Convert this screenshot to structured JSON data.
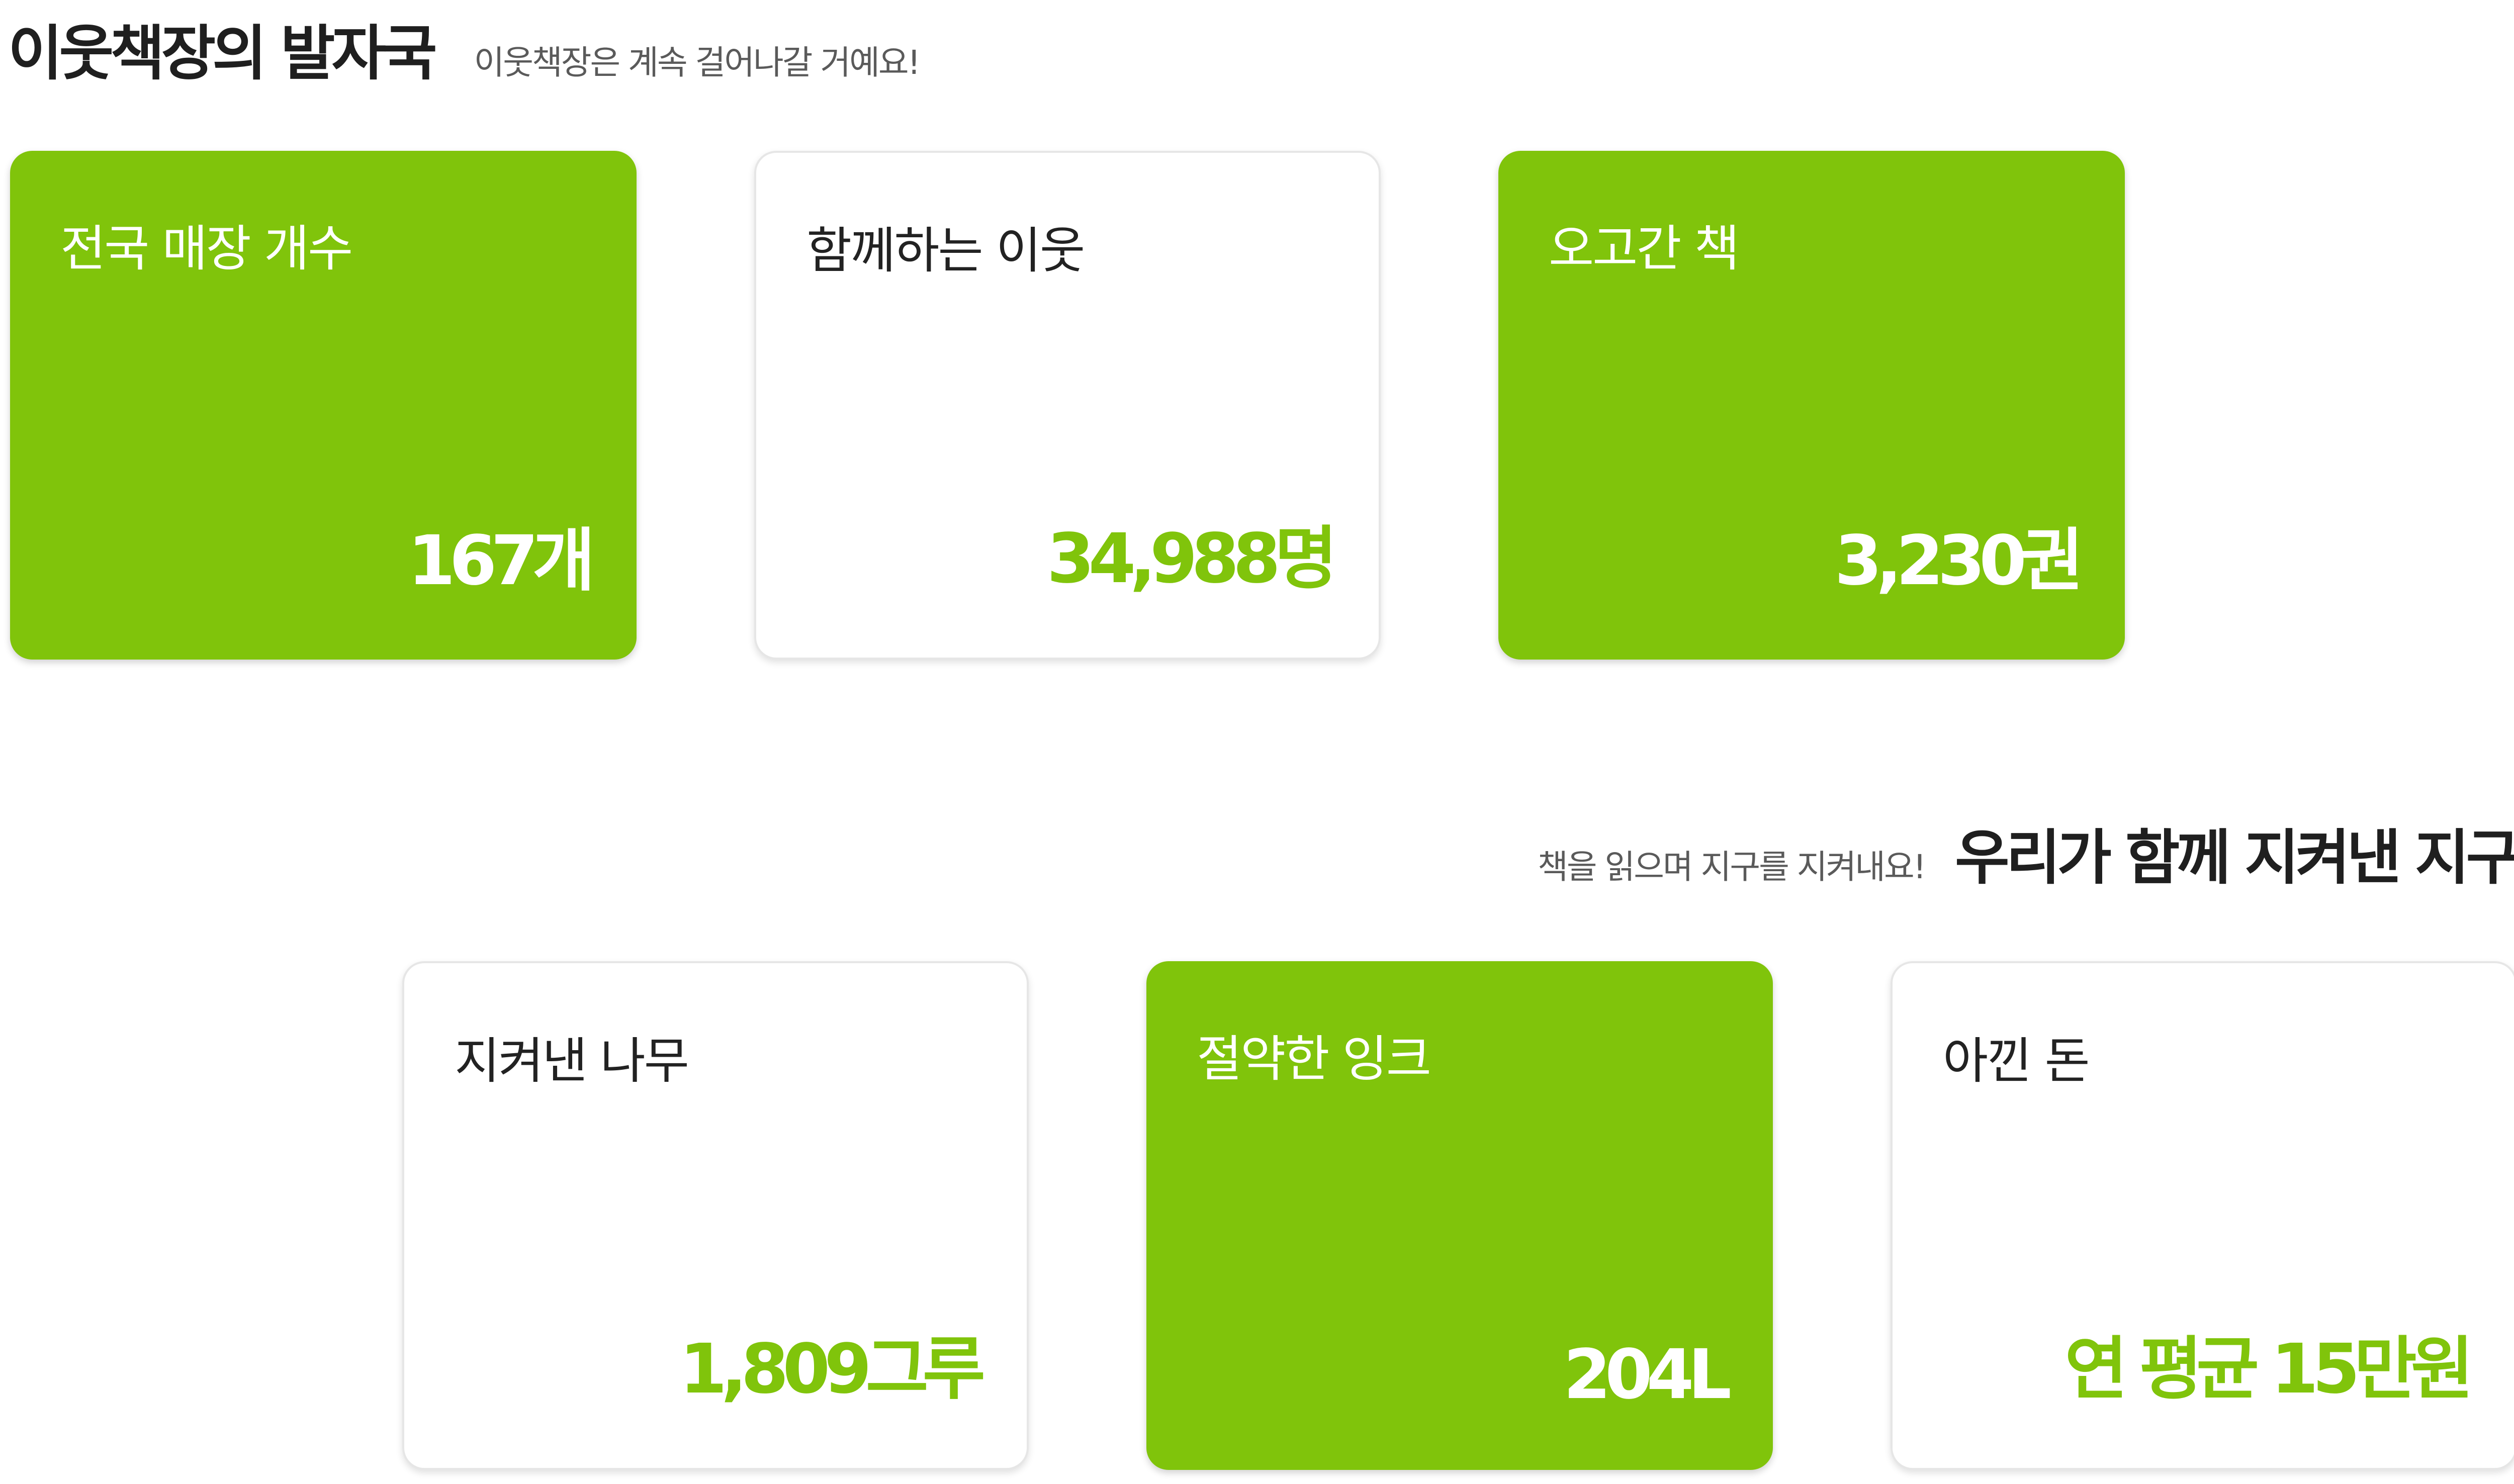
{
  "top_section": {
    "title": "이웃책장의 발자국",
    "subtitle": "이웃책장은 계속 걸어나갈 거예요!"
  },
  "top_cards": [
    {
      "label": "전국 매장 개수",
      "value": "167개",
      "style": "green"
    },
    {
      "label": "함께하는 이웃",
      "value": "34,988명",
      "style": "white"
    },
    {
      "label": "오고간 책",
      "value": "3,230권",
      "style": "green"
    }
  ],
  "bottom_section": {
    "subtitle": "책을 읽으며 지구를 지켜내요!",
    "title": "우리가 함께 지켜낸 지구"
  },
  "bottom_cards": [
    {
      "label": "지켜낸 나무",
      "value": "1,809그루",
      "style": "white"
    },
    {
      "label": "절약한 잉크",
      "value": "204L",
      "style": "green"
    },
    {
      "label": "아낀 돈",
      "value": "연 평균 15만원",
      "style": "white"
    }
  ],
  "colors": {
    "accent": "#80c40b",
    "text": "#222222",
    "subtext": "#5a5a5a",
    "card_border": "#e6e6e6"
  }
}
